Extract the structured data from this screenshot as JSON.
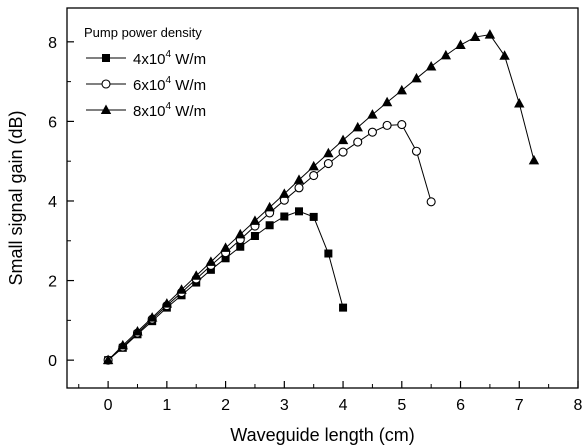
{
  "chart_data": {
    "type": "line",
    "title": "",
    "xlabel": "Waveguide length (cm)",
    "ylabel": "Small signal gain (dB)",
    "xlim": [
      -0.7,
      8
    ],
    "ylim": [
      -0.7,
      8.85
    ],
    "x_ticks": [
      "0",
      "1",
      "2",
      "3",
      "4",
      "5",
      "6",
      "7",
      "8"
    ],
    "y_ticks": [
      "0",
      "2",
      "4",
      "6",
      "8"
    ],
    "legend": {
      "title": "Pump power density",
      "placement": "top-left",
      "entries": [
        {
          "base": "4x10",
          "exp": "4",
          "unit": " W/m"
        },
        {
          "base": "6x10",
          "exp": "4",
          "unit": " W/m"
        },
        {
          "base": "8x10",
          "exp": "4",
          "unit": " W/m"
        }
      ]
    },
    "series": [
      {
        "name": "4x10^4 W/m",
        "marker": "filled-square",
        "x": [
          0,
          0.25,
          0.5,
          0.75,
          1.0,
          1.25,
          1.5,
          1.75,
          2.0,
          2.25,
          2.5,
          2.75,
          3.0,
          3.25,
          3.5,
          3.75,
          4.0
        ],
        "y": [
          0.0,
          0.31,
          0.65,
          0.98,
          1.32,
          1.63,
          1.95,
          2.27,
          2.56,
          2.85,
          3.12,
          3.39,
          3.61,
          3.74,
          3.6,
          2.68,
          1.32
        ]
      },
      {
        "name": "6x10^4 W/m",
        "marker": "open-circle",
        "x": [
          0,
          0.25,
          0.5,
          0.75,
          1.0,
          1.25,
          1.5,
          1.75,
          2.0,
          2.25,
          2.5,
          2.75,
          3.0,
          3.25,
          3.5,
          3.75,
          4.0,
          4.25,
          4.5,
          4.75,
          5.0,
          5.25,
          5.5
        ],
        "y": [
          0.0,
          0.33,
          0.68,
          1.03,
          1.37,
          1.7,
          2.04,
          2.38,
          2.7,
          3.03,
          3.37,
          3.7,
          4.02,
          4.33,
          4.64,
          4.94,
          5.23,
          5.48,
          5.73,
          5.9,
          5.92,
          5.25,
          3.98
        ]
      },
      {
        "name": "8x10^4 W/m",
        "marker": "filled-triangle",
        "x": [
          0,
          0.25,
          0.5,
          0.75,
          1.0,
          1.25,
          1.5,
          1.75,
          2.0,
          2.25,
          2.5,
          2.75,
          3.0,
          3.25,
          3.5,
          3.75,
          4.0,
          4.25,
          4.5,
          4.75,
          5.0,
          5.25,
          5.5,
          5.75,
          6.0,
          6.25,
          6.5,
          6.75,
          7.0,
          7.25
        ],
        "y": [
          0.0,
          0.37,
          0.72,
          1.07,
          1.42,
          1.77,
          2.12,
          2.47,
          2.82,
          3.16,
          3.5,
          3.84,
          4.18,
          4.53,
          4.87,
          5.2,
          5.53,
          5.85,
          6.17,
          6.48,
          6.78,
          7.08,
          7.38,
          7.66,
          7.92,
          8.12,
          8.18,
          7.65,
          6.45,
          5.02
        ]
      }
    ]
  }
}
